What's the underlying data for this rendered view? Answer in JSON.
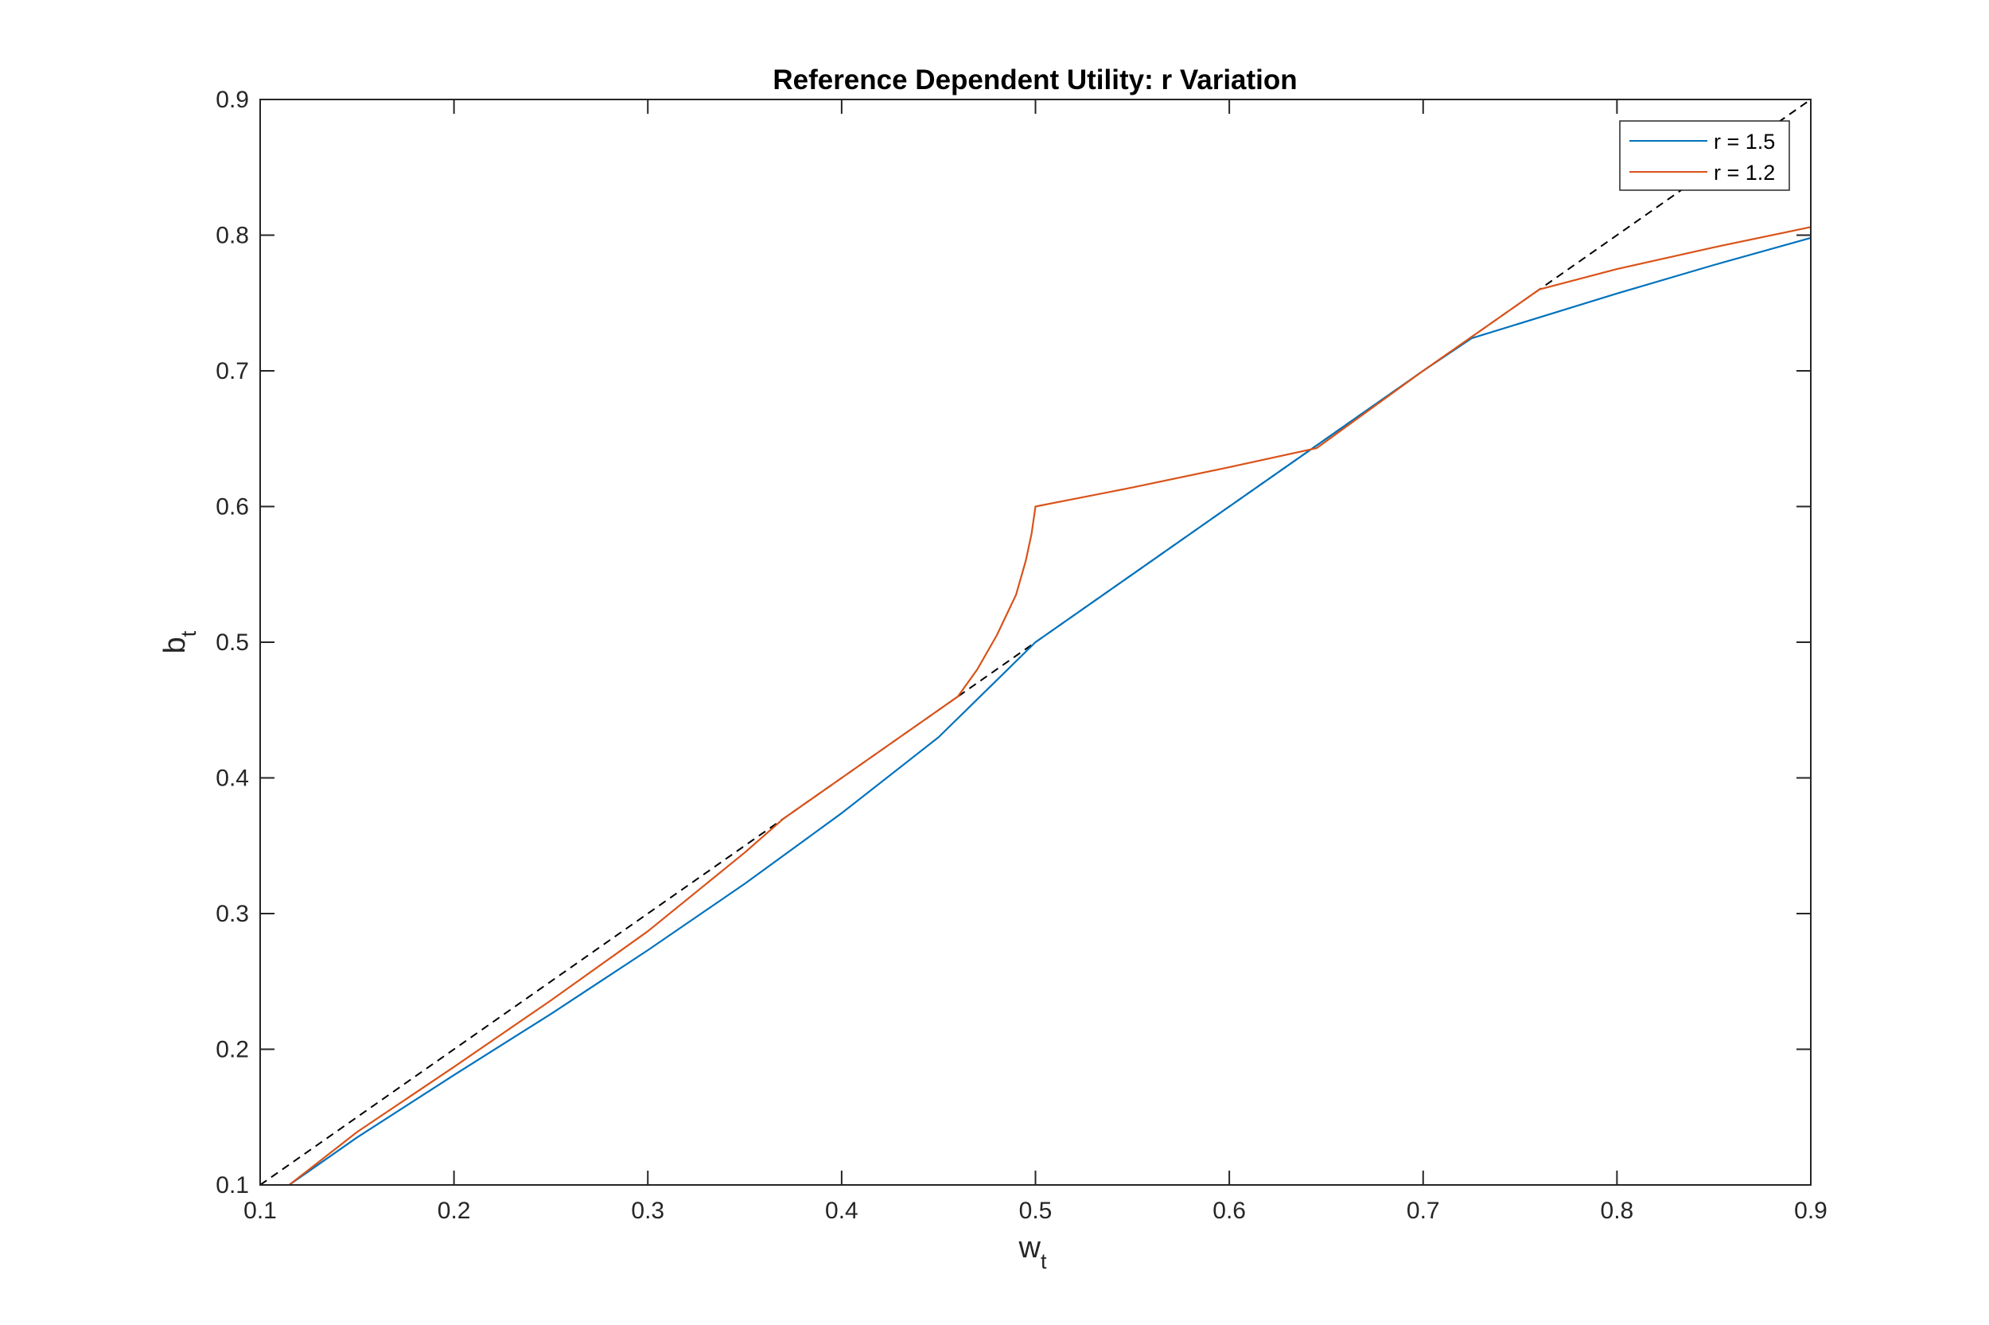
{
  "chart_data": {
    "type": "line",
    "title": "Reference Dependent Utility: r Variation",
    "xlabel": {
      "main": "w",
      "subscript": "t"
    },
    "ylabel": {
      "main": "b",
      "subscript": "t"
    },
    "xlim": [
      0.1,
      0.9
    ],
    "ylim": [
      0.1,
      0.9
    ],
    "xticks": [
      0.1,
      0.2,
      0.3,
      0.4,
      0.5,
      0.6,
      0.7,
      0.8,
      0.9
    ],
    "yticks": [
      0.1,
      0.2,
      0.3,
      0.4,
      0.5,
      0.6,
      0.7,
      0.8,
      0.9
    ],
    "xtick_labels": [
      "0.1",
      "0.2",
      "0.3",
      "0.4",
      "0.5",
      "0.6",
      "0.7",
      "0.8",
      "0.9"
    ],
    "ytick_labels": [
      "0.1",
      "0.2",
      "0.3",
      "0.4",
      "0.5",
      "0.6",
      "0.7",
      "0.8",
      "0.9"
    ],
    "grid": false,
    "legend_position": "top-right",
    "series": [
      {
        "name": "r = 1.5",
        "color": "#0072BD",
        "line_style": "solid",
        "x": [
          0.115,
          0.15,
          0.2,
          0.25,
          0.3,
          0.35,
          0.4,
          0.45,
          0.5,
          0.55,
          0.6,
          0.65,
          0.7,
          0.725,
          0.8,
          0.85,
          0.9
        ],
        "y": [
          0.1,
          0.135,
          0.181,
          0.226,
          0.273,
          0.322,
          0.374,
          0.43,
          0.5,
          0.55,
          0.6,
          0.65,
          0.7,
          0.724,
          0.757,
          0.778,
          0.798
        ]
      },
      {
        "name": "r = 1.2",
        "color": "#D95319",
        "line_style": "solid",
        "x": [
          0.115,
          0.15,
          0.2,
          0.25,
          0.3,
          0.35,
          0.37,
          0.4,
          0.46,
          0.47,
          0.48,
          0.49,
          0.495,
          0.498,
          0.5,
          0.55,
          0.6,
          0.645,
          0.7,
          0.76,
          0.8,
          0.85,
          0.9
        ],
        "y": [
          0.1,
          0.139,
          0.187,
          0.236,
          0.287,
          0.345,
          0.37,
          0.4,
          0.46,
          0.48,
          0.505,
          0.535,
          0.56,
          0.58,
          0.6,
          0.614,
          0.629,
          0.643,
          0.7,
          0.76,
          0.775,
          0.791,
          0.806
        ]
      },
      {
        "color": "#000000",
        "line_style": "dashed",
        "x": [
          0.1,
          0.9
        ],
        "y": [
          0.1,
          0.9
        ]
      }
    ]
  }
}
